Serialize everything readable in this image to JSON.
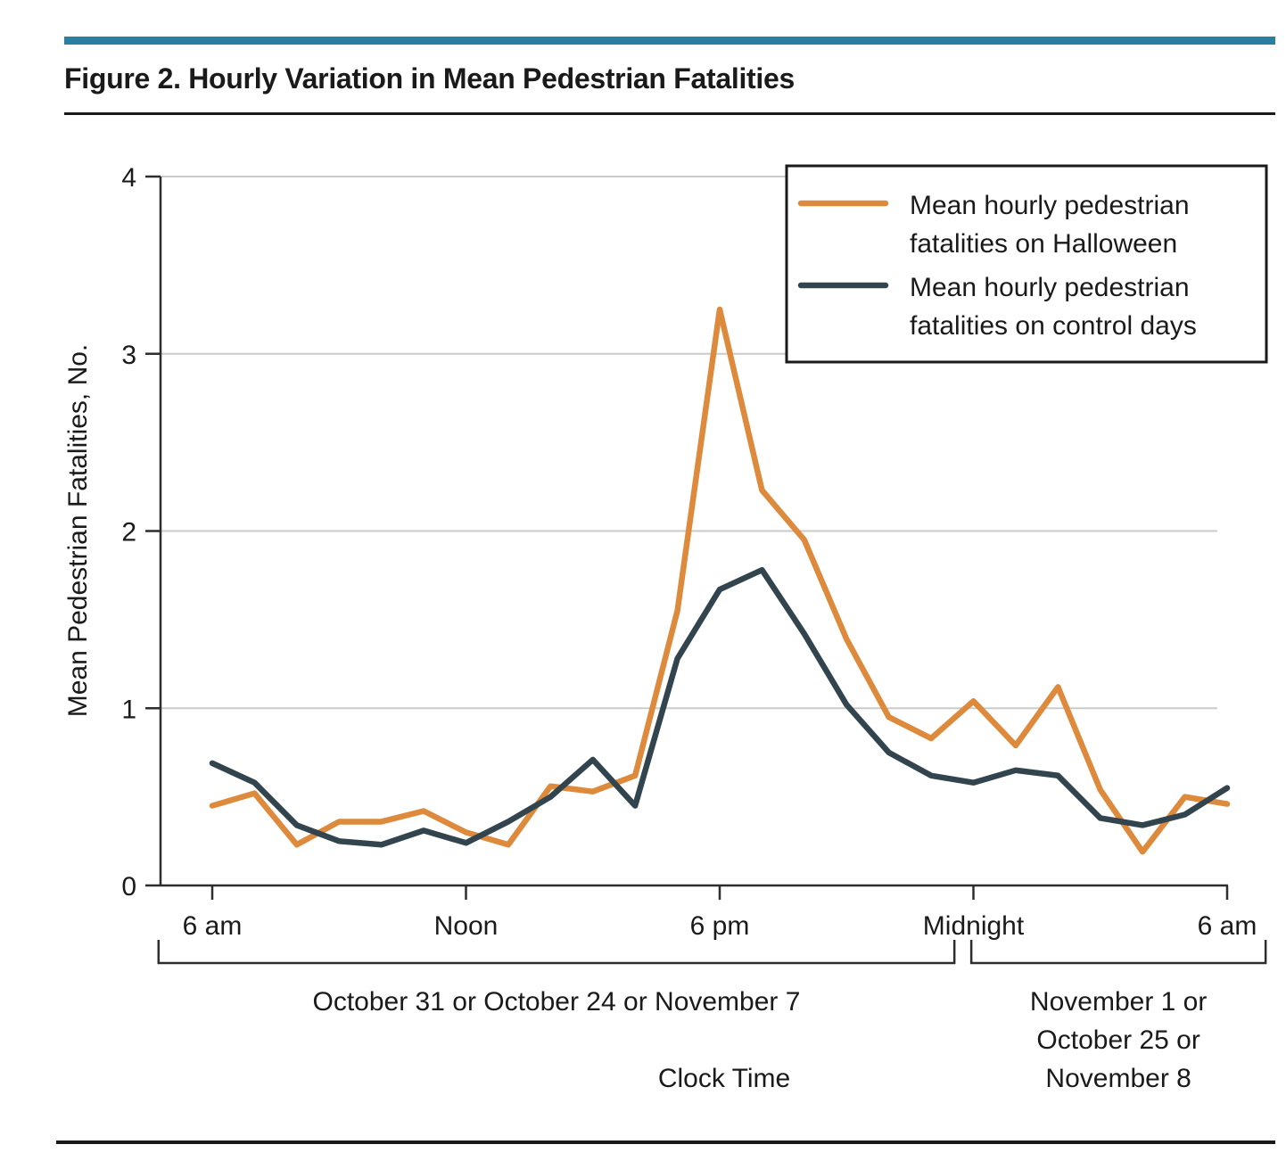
{
  "page": {
    "title": "Figure 2. Hourly Variation in Mean Pedestrian Fatalities"
  },
  "colors": {
    "accent_bar": "#2B7FA3",
    "halloween_line": "#DD8A3D",
    "control_line": "#32454E",
    "gridline": "#CBCBCB",
    "axis": "#2D2D2D",
    "text": "#1A1A1A",
    "legend_border": "#1A1A1A",
    "legend_fill": "#FFFFFF"
  },
  "chart_data": {
    "type": "line",
    "title": "Figure 2. Hourly Variation in Mean Pedestrian Fatalities",
    "xlabel": "Clock Time",
    "ylabel": "Mean Pedestrian Fatalities, No.",
    "ylim": [
      0,
      4
    ],
    "yticks": [
      0,
      1,
      2,
      3,
      4
    ],
    "x_unit": "hours after 6 am",
    "x": [
      0,
      1,
      2,
      3,
      4,
      5,
      6,
      7,
      8,
      9,
      10,
      11,
      12,
      13,
      14,
      15,
      16,
      17,
      18,
      19,
      20,
      21,
      22,
      23,
      24
    ],
    "xticks": [
      {
        "hour": 0,
        "label": "6 am"
      },
      {
        "hour": 6,
        "label": "Noon"
      },
      {
        "hour": 12,
        "label": "6 pm"
      },
      {
        "hour": 18,
        "label": "Midnight"
      },
      {
        "hour": 24,
        "label": "6 am"
      }
    ],
    "grid": "horizontal gridlines at y=1,2,3,4",
    "legend_position": "top-right boxed",
    "series": [
      {
        "name": "Mean hourly pedestrian fatalities on Halloween",
        "label_lines": [
          "Mean hourly pedestrian",
          "fatalities on Halloween"
        ],
        "color": "#DD8A3D",
        "values": [
          0.45,
          0.52,
          0.23,
          0.36,
          0.36,
          0.42,
          0.3,
          0.23,
          0.56,
          0.53,
          0.62,
          1.55,
          3.25,
          2.23,
          1.95,
          1.39,
          0.95,
          0.83,
          1.04,
          0.79,
          1.12,
          0.54,
          0.19,
          0.5,
          0.46
        ]
      },
      {
        "name": "Mean hourly pedestrian fatalities on control days",
        "label_lines": [
          "Mean hourly pedestrian",
          "fatalities on control days"
        ],
        "color": "#32454E",
        "values": [
          0.69,
          0.58,
          0.34,
          0.25,
          0.23,
          0.31,
          0.24,
          0.36,
          0.5,
          0.71,
          0.45,
          1.28,
          1.67,
          1.78,
          1.42,
          1.02,
          0.75,
          0.62,
          0.58,
          0.65,
          0.62,
          0.38,
          0.34,
          0.4,
          0.55
        ]
      }
    ],
    "period_brackets": [
      {
        "lines": [
          "October 31 or October 24 or November 7"
        ],
        "from_hour": -1.27,
        "to_hour": 17.55
      },
      {
        "lines": [
          "November 1 or",
          "October 25 or",
          "November 8"
        ],
        "from_hour": 17.95,
        "to_hour": 24.91
      }
    ]
  }
}
